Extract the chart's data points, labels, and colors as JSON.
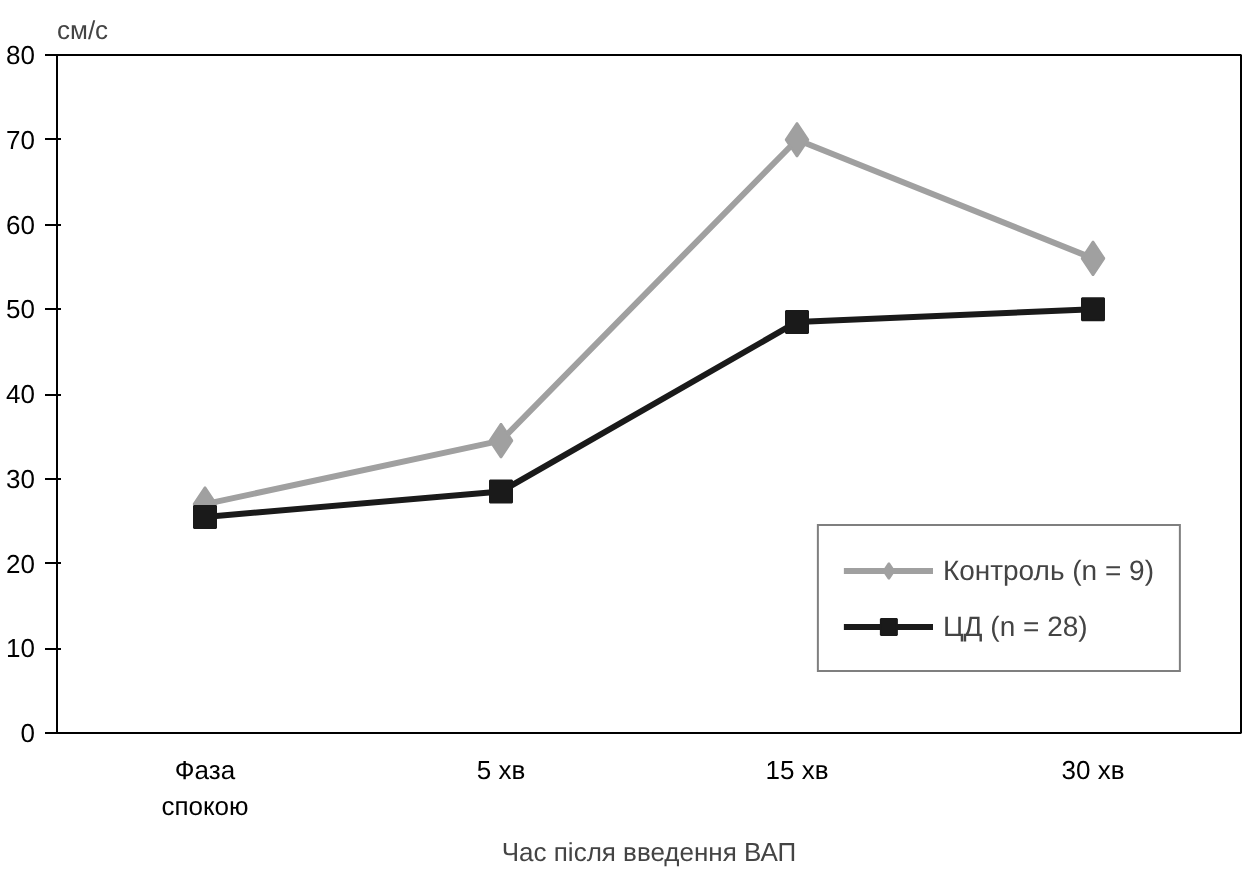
{
  "chart_data": {
    "type": "line",
    "ylabel": "см/с",
    "xlabel": "Час після введення ВАП",
    "categories": [
      "Фаза\nспокою",
      "5 хв",
      "15 хв",
      "30 хв"
    ],
    "ylim": [
      0,
      80
    ],
    "yticks": [
      0,
      10,
      20,
      30,
      40,
      50,
      60,
      70,
      80
    ],
    "grid": false,
    "legend": "bottom right",
    "line_style": "solid",
    "series": [
      {
        "name": "Контроль (n = 9)",
        "color": "#a0a0a0",
        "marker": "diamond",
        "values": [
          27,
          34.5,
          70,
          56
        ]
      },
      {
        "name": "ЦД (n = 28)",
        "color": "#1a1a1a",
        "marker": "square",
        "values": [
          25.5,
          28.5,
          48.5,
          50
        ]
      }
    ]
  }
}
